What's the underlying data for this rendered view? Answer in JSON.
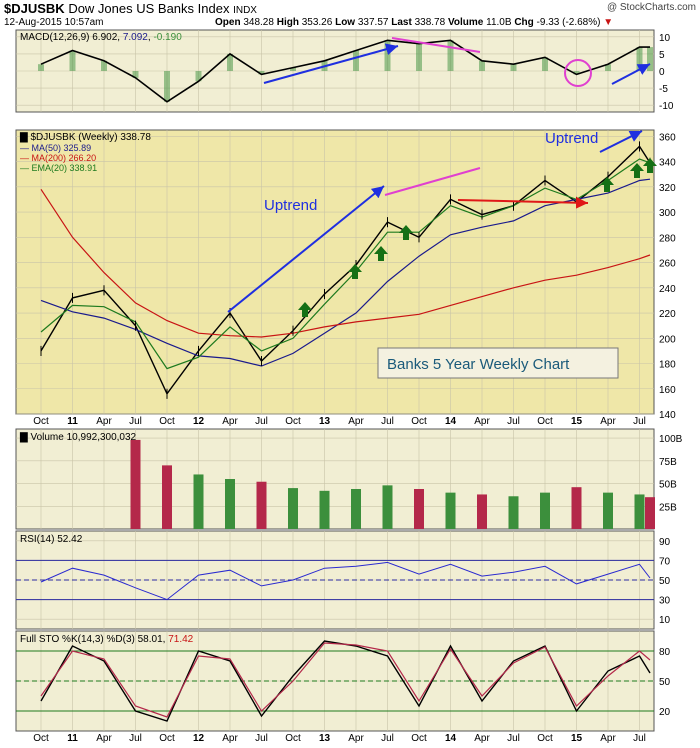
{
  "header": {
    "symbol": "$DJUSBK",
    "name": "Dow Jones US Banks Index",
    "exchange": "INDX",
    "date": "12-Aug-2015 10:57am",
    "watermark": "@ StockCharts.com",
    "open_label": "Open",
    "open": "348.28",
    "high_label": "High",
    "high": "353.26",
    "low_label": "Low",
    "low": "337.57",
    "last_label": "Last",
    "last": "338.78",
    "volume_label": "Volume",
    "volume": "11.0B",
    "chg_label": "Chg",
    "chg": "-9.33 (-2.68%)",
    "chg_arrow": "▼"
  },
  "colors": {
    "panel_bg": "#f1eed3",
    "price_bg": "#efe7a8",
    "price": "#000000",
    "ma50": "#1a1a8c",
    "ma200": "#c81414",
    "ema20": "#1e7a1e",
    "volume_up": "#3c8f3c",
    "volume_down": "#b4284a",
    "annotation_blue": "#1f2fe0",
    "annotation_magenta": "#e040d0",
    "annotation_red": "#e01818",
    "annotation_green": "#157015"
  },
  "x_axis": {
    "labels": [
      "Oct",
      "11",
      "Apr",
      "Jul",
      "Oct",
      "12",
      "Apr",
      "Jul",
      "Oct",
      "13",
      "Apr",
      "Jul",
      "Oct",
      "14",
      "Apr",
      "Jul",
      "Oct",
      "15",
      "Apr",
      "Jul"
    ],
    "bold": [
      "11",
      "12",
      "13",
      "14",
      "15"
    ]
  },
  "panels": {
    "macd": {
      "label": "MACD(12,26,9)",
      "macd": "6.902",
      "signal": "7.092",
      "hist": "-0.190",
      "ticks": [
        "10",
        "5",
        "0",
        "-5",
        "-10"
      ]
    },
    "price": {
      "label": "$DJUSBK (Weekly)",
      "last": "338.78",
      "ma50_label": "MA(50)",
      "ma50": "325.89",
      "ma200_label": "MA(200)",
      "ma200": "266.20",
      "ema20_label": "EMA(20)",
      "ema20": "338.91",
      "ticks": [
        "360",
        "340",
        "320",
        "300",
        "280",
        "260",
        "240",
        "220",
        "200",
        "180",
        "160",
        "140"
      ],
      "annotations": {
        "uptrend_1": "Uptrend",
        "uptrend_2": "Uptrend",
        "box": "Banks 5 Year Weekly Chart"
      }
    },
    "volume": {
      "label": "Volume",
      "value": "10,992,300,032",
      "ticks": [
        "100B",
        "75B",
        "50B",
        "25B"
      ]
    },
    "rsi": {
      "label": "RSI(14)",
      "value": "52.42",
      "ticks": [
        "90",
        "70",
        "50",
        "30",
        "10"
      ]
    },
    "sto": {
      "label": "Full STO %K(14,3) %D(3)",
      "k": "58.01",
      "d": "71.42",
      "ticks": [
        "80",
        "50",
        "20"
      ]
    }
  },
  "chart_data": {
    "type": "line",
    "title": "$DJUSBK Dow Jones US Banks Index",
    "timeframe": "Weekly",
    "x": [
      "2010-10",
      "2011-01",
      "2011-04",
      "2011-07",
      "2011-10",
      "2012-01",
      "2012-04",
      "2012-07",
      "2012-10",
      "2013-01",
      "2013-04",
      "2013-07",
      "2013-10",
      "2014-01",
      "2014-04",
      "2014-07",
      "2014-10",
      "2015-01",
      "2015-04",
      "2015-07",
      "2015-08"
    ],
    "series": [
      {
        "name": "$DJUSBK",
        "values": [
          190,
          232,
          238,
          210,
          156,
          190,
          220,
          182,
          206,
          235,
          258,
          292,
          280,
          310,
          298,
          305,
          325,
          308,
          328,
          352,
          339
        ]
      },
      {
        "name": "MA(50)",
        "values": [
          230,
          221,
          216,
          207,
          196,
          186,
          184,
          178,
          188,
          204,
          220,
          245,
          265,
          282,
          288,
          293,
          305,
          310,
          315,
          325,
          326
        ]
      },
      {
        "name": "MA(200)",
        "values": [
          318,
          280,
          252,
          228,
          214,
          204,
          202,
          201,
          204,
          209,
          213,
          216,
          219,
          226,
          233,
          240,
          246,
          250,
          256,
          263,
          266
        ]
      },
      {
        "name": "EMA(20)",
        "values": [
          205,
          226,
          225,
          213,
          176,
          185,
          209,
          190,
          200,
          227,
          253,
          284,
          284,
          305,
          296,
          305,
          319,
          310,
          325,
          342,
          339
        ]
      }
    ],
    "ylim": [
      140,
      365
    ],
    "macd": {
      "values": [
        2,
        6,
        3,
        -2,
        -9,
        -3,
        5,
        -1,
        1,
        3,
        6,
        9,
        8,
        9,
        3,
        2,
        4,
        -1,
        2,
        7,
        7
      ],
      "ylim": [
        -12,
        12
      ]
    },
    "volume": {
      "values": [
        null,
        null,
        null,
        98,
        70,
        60,
        55,
        52,
        45,
        42,
        44,
        48,
        44,
        40,
        38,
        36,
        40,
        46,
        40,
        38,
        35
      ],
      "ylim": [
        0,
        110
      ],
      "unit": "B"
    },
    "rsi": {
      "values": [
        48,
        62,
        55,
        42,
        30,
        55,
        60,
        44,
        50,
        62,
        64,
        68,
        56,
        66,
        54,
        58,
        64,
        46,
        56,
        66,
        52
      ],
      "ylim": [
        0,
        100
      ]
    },
    "stochastic": {
      "k": [
        30,
        85,
        70,
        20,
        10,
        80,
        70,
        15,
        55,
        90,
        85,
        75,
        25,
        85,
        30,
        70,
        85,
        20,
        60,
        75,
        58
      ],
      "d": [
        35,
        80,
        72,
        25,
        14,
        75,
        72,
        20,
        50,
        88,
        86,
        80,
        30,
        82,
        35,
        68,
        84,
        25,
        55,
        80,
        71
      ],
      "ylim": [
        0,
        100
      ]
    },
    "annotations": [
      "Uptrend",
      "Uptrend",
      "Banks 5 Year Weekly Chart"
    ]
  }
}
